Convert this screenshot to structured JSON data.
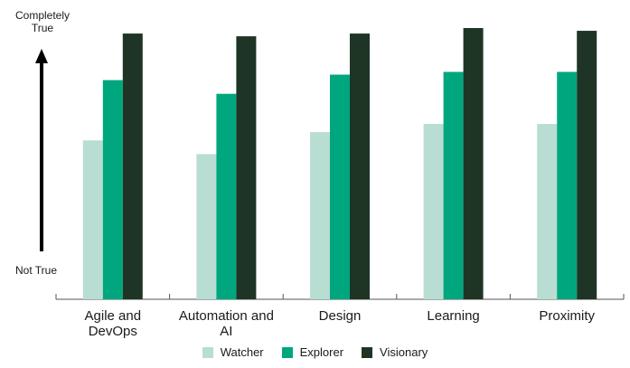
{
  "chart_data": {
    "type": "bar",
    "title": "",
    "xlabel": "",
    "ylabel": "",
    "y_axis_top_label": "Completely True",
    "y_axis_bottom_label": "Not True",
    "ylim": [
      0,
      100
    ],
    "grid": false,
    "legend_position": "bottom-center",
    "categories": [
      "Agile and DevOps",
      "Automation and AI",
      "Design",
      "Learning",
      "Proximity"
    ],
    "series": [
      {
        "name": "Watcher",
        "color": "#b8ddd3",
        "values": [
          58,
          53,
          61,
          64,
          64
        ]
      },
      {
        "name": "Explorer",
        "color": "#00a77e",
        "values": [
          80,
          75,
          82,
          83,
          83
        ]
      },
      {
        "name": "Visionary",
        "color": "#1e3526",
        "values": [
          97,
          96,
          97,
          99,
          98
        ]
      }
    ]
  }
}
